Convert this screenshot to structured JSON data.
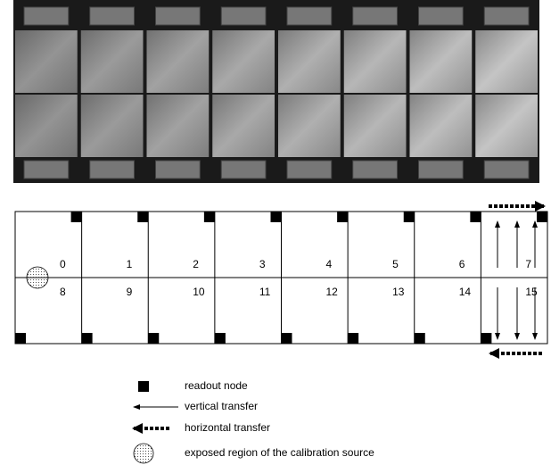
{
  "ccd_labels": [
    "0",
    "1",
    "2",
    "3",
    "4",
    "5",
    "6",
    "7",
    "8",
    "9",
    "10",
    "11",
    "12",
    "13",
    "14",
    "15"
  ],
  "legend": {
    "readout_node": "readout node",
    "vertical_transfer": "vertical transfer",
    "horizontal_transfer": "horizontal transfer",
    "exposed_region": "exposed region of the calibration source"
  }
}
